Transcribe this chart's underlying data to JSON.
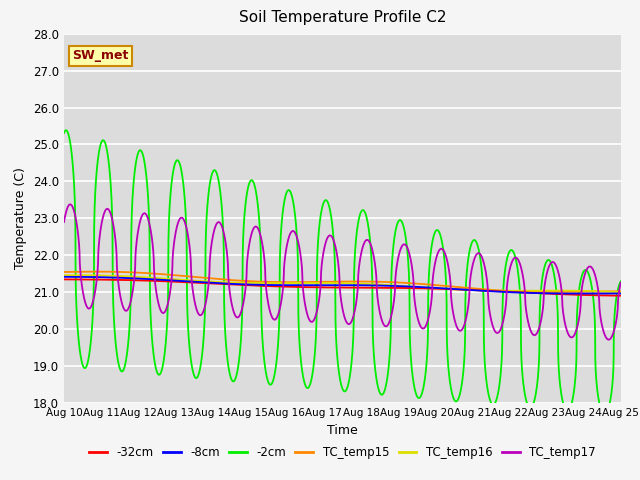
{
  "title": "Soil Temperature Profile C2",
  "xlabel": "Time",
  "ylabel": "Temperature (C)",
  "ylim": [
    18.0,
    28.0
  ],
  "yticks": [
    18.0,
    19.0,
    20.0,
    21.0,
    22.0,
    23.0,
    24.0,
    25.0,
    26.0,
    27.0,
    28.0
  ],
  "colors": {
    "-32cm": "#ff0000",
    "-8cm": "#0000ff",
    "-2cm": "#00ee00",
    "TC_temp15": "#ff8800",
    "TC_temp16": "#dddd00",
    "TC_temp17": "#bb00bb"
  },
  "plot_bg_color": "#dcdcdc",
  "fig_bg_color": "#f5f5f5",
  "annotation_text": "SW_met",
  "annotation_bg": "#ffffaa",
  "annotation_border": "#cc8800",
  "grid_color": "#ffffff"
}
